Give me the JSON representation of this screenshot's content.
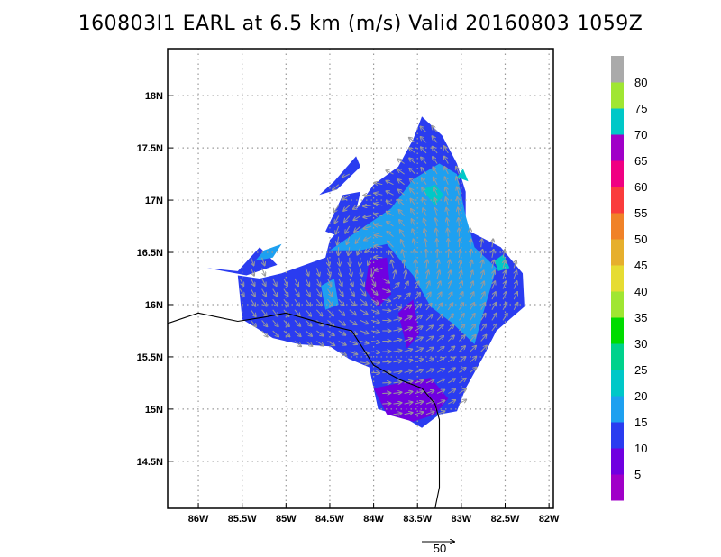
{
  "title": "160803I1  EARL at 6.5 km (m/s) Valid 20160803  1059Z",
  "chart_data": {
    "type": "heatmap",
    "title": "160803I1  EARL at 6.5 km (m/s) Valid 20160803  1059Z",
    "xlabel": "",
    "ylabel": "",
    "xlim": [
      -86.35,
      -81.95
    ],
    "ylim": [
      14.05,
      18.45
    ],
    "x_ticks": [
      {
        "value": -86.0,
        "label": "86W"
      },
      {
        "value": -85.5,
        "label": "85.5W"
      },
      {
        "value": -85.0,
        "label": "85W"
      },
      {
        "value": -84.5,
        "label": "84.5W"
      },
      {
        "value": -84.0,
        "label": "84W"
      },
      {
        "value": -83.5,
        "label": "83.5W"
      },
      {
        "value": -83.0,
        "label": "83W"
      },
      {
        "value": -82.5,
        "label": "82.5W"
      },
      {
        "value": -82.0,
        "label": "82W"
      }
    ],
    "y_ticks": [
      {
        "value": 14.5,
        "label": "14.5N"
      },
      {
        "value": 15.0,
        "label": "15N"
      },
      {
        "value": 15.5,
        "label": "15.5N"
      },
      {
        "value": 16.0,
        "label": "16N"
      },
      {
        "value": 16.5,
        "label": "16.5N"
      },
      {
        "value": 17.0,
        "label": "17N"
      },
      {
        "value": 17.5,
        "label": "17.5N"
      },
      {
        "value": 18.0,
        "label": "18N"
      }
    ],
    "grid": true,
    "colorbar": {
      "labels": [
        "5",
        "10",
        "15",
        "20",
        "25",
        "30",
        "35",
        "40",
        "45",
        "50",
        "55",
        "60",
        "65",
        "70",
        "75",
        "80"
      ],
      "colors": [
        "#a000c8",
        "#7000e0",
        "#2a3cf0",
        "#1ea0f0",
        "#00c8c8",
        "#00d28c",
        "#00dc00",
        "#a0e632",
        "#e6dc32",
        "#e6af2d",
        "#f08228",
        "#fa3c3c",
        "#f00082",
        "#a000c8",
        "#00c8c8",
        "#a0e632",
        "#aaaaaa"
      ]
    },
    "wind_regions": [
      {
        "level": "10-15",
        "polygon": [
          [
            -85.55,
            16.28
          ],
          [
            -85.3,
            16.25
          ],
          [
            -85.05,
            16.3
          ],
          [
            -84.55,
            16.45
          ],
          [
            -84.5,
            16.62
          ],
          [
            -84.25,
            16.85
          ],
          [
            -84.0,
            17.15
          ],
          [
            -83.72,
            17.32
          ],
          [
            -83.55,
            17.58
          ],
          [
            -83.45,
            17.8
          ],
          [
            -83.22,
            17.62
          ],
          [
            -83.05,
            17.35
          ],
          [
            -82.95,
            17.08
          ],
          [
            -82.95,
            16.72
          ],
          [
            -82.55,
            16.55
          ],
          [
            -82.3,
            16.3
          ],
          [
            -82.28,
            15.98
          ],
          [
            -82.6,
            15.75
          ],
          [
            -82.75,
            15.5
          ],
          [
            -82.95,
            15.2
          ],
          [
            -83.05,
            14.98
          ],
          [
            -83.25,
            14.95
          ],
          [
            -83.45,
            14.82
          ],
          [
            -83.65,
            14.92
          ],
          [
            -83.95,
            15.0
          ],
          [
            -84.05,
            15.4
          ],
          [
            -84.28,
            15.48
          ],
          [
            -84.5,
            15.6
          ],
          [
            -84.85,
            15.62
          ],
          [
            -85.15,
            15.68
          ],
          [
            -85.5,
            15.86
          ]
        ]
      },
      {
        "level": "10-15",
        "polygon": [
          [
            -85.9,
            16.35
          ],
          [
            -85.55,
            16.32
          ],
          [
            -85.3,
            16.55
          ],
          [
            -85.1,
            16.38
          ],
          [
            -85.45,
            16.28
          ]
        ]
      },
      {
        "level": "10-15",
        "polygon": [
          [
            -84.55,
            16.7
          ],
          [
            -84.35,
            17.05
          ],
          [
            -84.15,
            17.08
          ],
          [
            -84.28,
            16.62
          ]
        ]
      },
      {
        "level": "10-15",
        "polygon": [
          [
            -84.62,
            17.05
          ],
          [
            -84.45,
            17.18
          ],
          [
            -84.2,
            17.42
          ],
          [
            -84.15,
            17.32
          ],
          [
            -84.42,
            17.1
          ]
        ]
      },
      {
        "level": "15-20",
        "polygon": [
          [
            -84.5,
            16.52
          ],
          [
            -84.1,
            16.75
          ],
          [
            -83.8,
            16.92
          ],
          [
            -83.55,
            17.2
          ],
          [
            -83.25,
            17.35
          ],
          [
            -83.05,
            17.25
          ],
          [
            -82.95,
            16.85
          ],
          [
            -82.85,
            16.55
          ],
          [
            -82.6,
            16.35
          ],
          [
            -82.75,
            15.92
          ],
          [
            -82.85,
            15.62
          ],
          [
            -83.1,
            15.82
          ],
          [
            -83.35,
            15.98
          ],
          [
            -83.55,
            16.28
          ],
          [
            -83.85,
            16.58
          ],
          [
            -84.15,
            16.52
          ]
        ]
      },
      {
        "level": "15-20",
        "polygon": [
          [
            -85.25,
            16.52
          ],
          [
            -85.05,
            16.58
          ],
          [
            -85.15,
            16.45
          ],
          [
            -85.35,
            16.42
          ]
        ]
      },
      {
        "level": "15-20",
        "polygon": [
          [
            -84.6,
            16.18
          ],
          [
            -84.45,
            16.25
          ],
          [
            -84.4,
            16.0
          ],
          [
            -84.55,
            15.95
          ]
        ]
      },
      {
        "level": "20-25",
        "polygon": [
          [
            -83.45,
            17.1
          ],
          [
            -83.3,
            17.15
          ],
          [
            -83.2,
            17.05
          ],
          [
            -83.3,
            16.95
          ]
        ]
      },
      {
        "level": "20-25",
        "polygon": [
          [
            -82.62,
            16.42
          ],
          [
            -82.52,
            16.48
          ],
          [
            -82.45,
            16.35
          ],
          [
            -82.58,
            16.32
          ]
        ]
      },
      {
        "level": "20-25",
        "polygon": [
          [
            -83.05,
            17.22
          ],
          [
            -82.98,
            17.3
          ],
          [
            -82.92,
            17.18
          ]
        ]
      },
      {
        "level": "5-10",
        "polygon": [
          [
            -84.05,
            16.42
          ],
          [
            -83.85,
            16.45
          ],
          [
            -83.8,
            16.1
          ],
          [
            -83.95,
            15.98
          ],
          [
            -84.1,
            16.15
          ]
        ]
      },
      {
        "level": "5-10",
        "polygon": [
          [
            -83.72,
            15.92
          ],
          [
            -83.55,
            16.05
          ],
          [
            -83.48,
            15.72
          ],
          [
            -83.62,
            15.58
          ]
        ]
      },
      {
        "level": "5-10",
        "polygon": [
          [
            -84.0,
            15.2
          ],
          [
            -83.7,
            15.25
          ],
          [
            -83.35,
            15.3
          ],
          [
            -83.15,
            15.1
          ],
          [
            -83.3,
            14.95
          ],
          [
            -83.55,
            14.88
          ],
          [
            -83.85,
            14.95
          ]
        ]
      }
    ],
    "reference_vector": {
      "label": "50",
      "units": "m/s"
    },
    "coastline": [
      [
        -86.35,
        15.82
      ],
      [
        -86.0,
        15.92
      ],
      [
        -85.55,
        15.84
      ],
      [
        -85.25,
        15.88
      ],
      [
        -85.0,
        15.92
      ],
      [
        -84.75,
        15.86
      ],
      [
        -84.5,
        15.8
      ],
      [
        -84.25,
        15.75
      ],
      [
        -84.0,
        15.42
      ],
      [
        -83.7,
        15.28
      ],
      [
        -83.45,
        15.2
      ],
      [
        -83.3,
        15.05
      ],
      [
        -83.25,
        14.9
      ],
      [
        -83.25,
        14.6
      ],
      [
        -83.25,
        14.25
      ],
      [
        -83.3,
        14.05
      ]
    ]
  }
}
